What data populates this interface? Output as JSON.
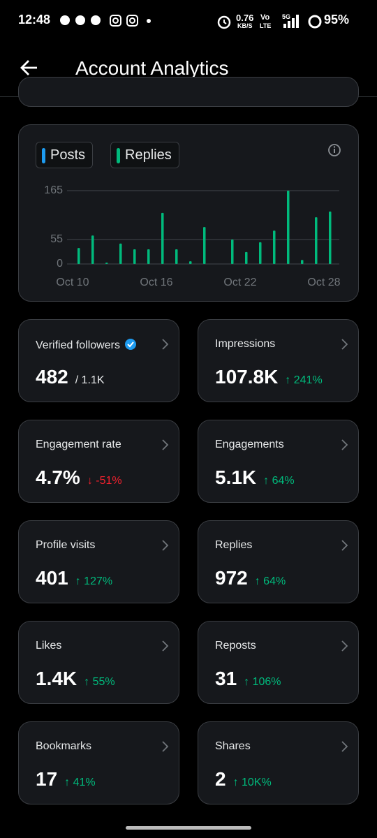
{
  "status_bar": {
    "time": "12:48",
    "speed": "0.76",
    "speed_unit": "KB/S",
    "volte_top": "Vo",
    "volte_bottom": "LTE",
    "network": "5G",
    "battery": "95%"
  },
  "header": {
    "title": "Account Analytics"
  },
  "chart_data": {
    "type": "bar",
    "categories": [
      "Oct 10",
      null,
      null,
      null,
      null,
      null,
      "Oct 16",
      null,
      null,
      null,
      null,
      null,
      "Oct 22",
      null,
      null,
      null,
      null,
      null,
      "Oct 28"
    ],
    "series": [
      {
        "name": "Posts",
        "color": "#1d9bf0",
        "values": [
          0,
          0,
          0,
          0,
          0,
          0,
          0,
          0,
          0,
          0,
          0,
          0,
          0,
          0,
          0,
          0,
          0,
          0,
          0
        ]
      },
      {
        "name": "Replies",
        "color": "#00ba7c",
        "values": [
          36,
          64,
          3,
          46,
          33,
          33,
          115,
          33,
          6,
          83,
          0,
          55,
          27,
          49,
          75,
          165,
          9,
          105,
          118
        ]
      }
    ],
    "ylim": [
      0,
      165
    ],
    "yticks": [
      0,
      55,
      165
    ],
    "grid": true
  },
  "metrics": [
    {
      "label": "Verified followers",
      "value": "482",
      "sub": "/ 1.1K",
      "trend": "none"
    },
    {
      "label": "Impressions",
      "value": "107.8K",
      "sub": "↑ 241%",
      "trend": "up"
    },
    {
      "label": "Engagement rate",
      "value": "4.7%",
      "sub": "↓ -51%",
      "trend": "down"
    },
    {
      "label": "Engagements",
      "value": "5.1K",
      "sub": "↑ 64%",
      "trend": "up"
    },
    {
      "label": "Profile visits",
      "value": "401",
      "sub": "↑ 127%",
      "trend": "up"
    },
    {
      "label": "Replies",
      "value": "972",
      "sub": "↑ 64%",
      "trend": "up"
    },
    {
      "label": "Likes",
      "value": "1.4K",
      "sub": "↑ 55%",
      "trend": "up"
    },
    {
      "label": "Reposts",
      "value": "31",
      "sub": "↑ 106%",
      "trend": "up"
    },
    {
      "label": "Bookmarks",
      "value": "17",
      "sub": "↑ 41%",
      "trend": "up"
    },
    {
      "label": "Shares",
      "value": "2",
      "sub": "↑ 10K%",
      "trend": "up"
    }
  ]
}
